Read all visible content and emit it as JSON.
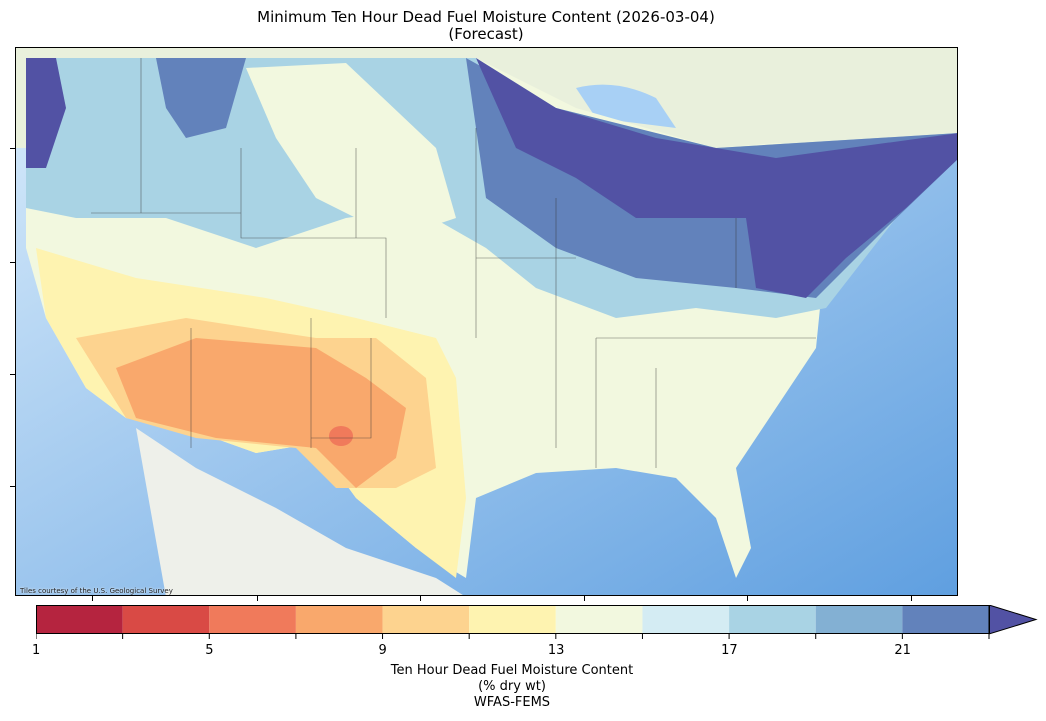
{
  "title": {
    "line1": "Minimum Ten Hour Dead Fuel Moisture Content (2026-03-04)",
    "line2": "(Forecast)"
  },
  "map": {
    "attribution": "Tiles courtesy of the U.S. Geological Survey",
    "region": "Contiguous United States",
    "basemap": "USGS topo tiles"
  },
  "colorbar": {
    "label_line1": "Ten Hour Dead Fuel Moisture Content",
    "label_line2": "(% dry wt)",
    "label_line3": "WFAS-FEMS",
    "boundaries": [
      1,
      3,
      5,
      7,
      9,
      11,
      13,
      15,
      17,
      19,
      21,
      23
    ],
    "tick_labels": [
      "1",
      "5",
      "9",
      "13",
      "17",
      "21"
    ],
    "extend": "max",
    "colors": [
      "#b5243f",
      "#d94a45",
      "#f07a5b",
      "#f9a86c",
      "#fdd38f",
      "#fef3b0",
      "#f2f8df",
      "#d4ecf3",
      "#a9d3e4",
      "#83b0d3",
      "#6282bb"
    ],
    "extend_color": "#5252a4"
  }
}
